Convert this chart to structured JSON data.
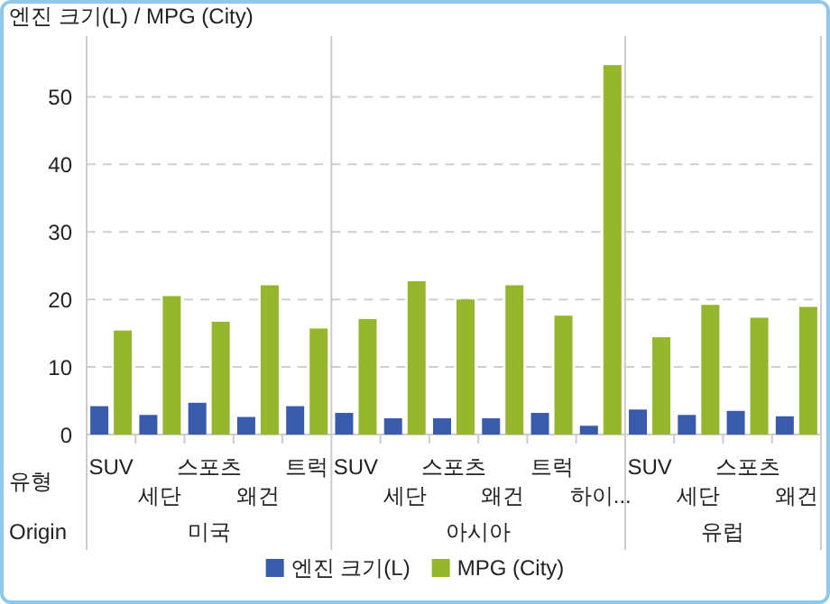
{
  "chart_data": [
    {
      "type": "bar",
      "xlabel": "미국",
      "ylabel": "엔진 크기(L) / MPG (City)",
      "categories": [
        "SUV",
        "세단",
        "스포츠",
        "왜건",
        "트럭"
      ],
      "series": [
        {
          "name": "엔진 크기(L)",
          "color": "#3a5bac",
          "values": [
            4.2,
            2.9,
            4.7,
            2.6,
            4.2
          ]
        },
        {
          "name": "MPG (City)",
          "color": "#96b62e",
          "values": [
            15.4,
            20.5,
            16.7,
            22.1,
            15.7
          ]
        }
      ],
      "ylim": [
        0,
        59
      ],
      "yticks": [
        0,
        10,
        20,
        30,
        40,
        50
      ],
      "grid": "y",
      "legend": "bottom",
      "annotations": [
        "유형",
        "Origin"
      ]
    },
    {
      "type": "bar",
      "xlabel": "아시아",
      "categories": [
        "SUV",
        "세단",
        "스포츠",
        "왜건",
        "트럭",
        "하이..."
      ],
      "series": [
        {
          "color": "#3a5bac",
          "values": [
            3.2,
            2.4,
            2.4,
            2.4,
            3.2,
            1.3
          ]
        },
        {
          "color": "#96b62e",
          "values": [
            17.1,
            22.7,
            20.0,
            22.1,
            17.6,
            54.7
          ]
        }
      ],
      "ylim": [
        0,
        59
      ],
      "yticks": [
        0,
        10,
        20,
        30,
        40,
        50
      ],
      "grid": "y",
      "tick_labels": "x"
    },
    {
      "type": "bar",
      "xlabel": "유럽",
      "categories": [
        "SUV",
        "세단",
        "스포츠",
        "왜건"
      ],
      "series": [
        {
          "color": "#3a5bac",
          "values": [
            3.7,
            2.9,
            3.5,
            2.7
          ]
        },
        {
          "color": "#96b62e",
          "values": [
            14.4,
            19.2,
            17.3,
            18.9
          ]
        }
      ],
      "ylim": [
        0,
        59
      ],
      "yticks": [
        0,
        10,
        20,
        30,
        40,
        50
      ],
      "grid": "y",
      "tick_labels": "x"
    }
  ]
}
